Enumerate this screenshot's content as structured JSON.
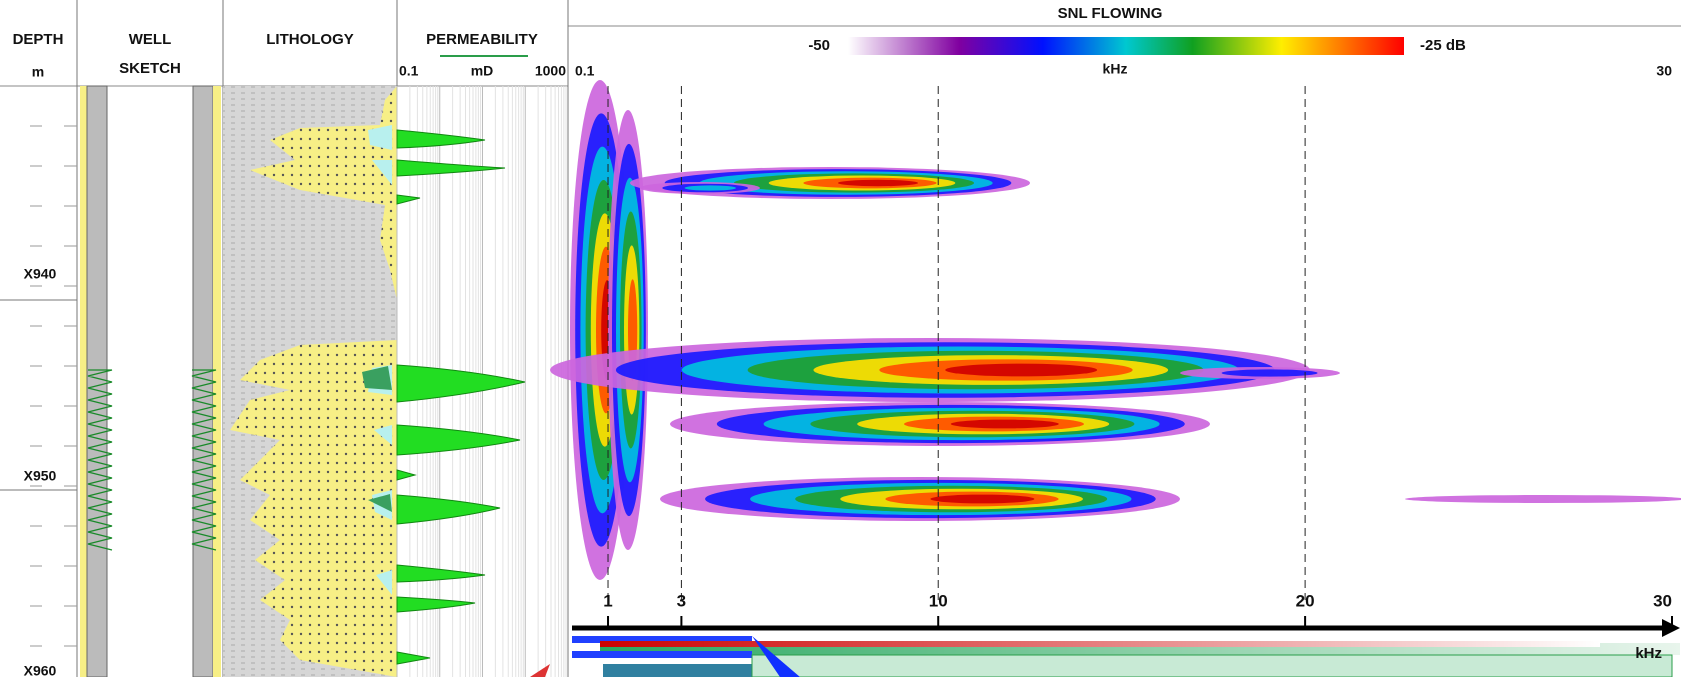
{
  "depth_track": {
    "header": "DEPTH",
    "unit": "m",
    "labels": [
      "X940",
      "X950",
      "X960"
    ]
  },
  "well_sketch": {
    "header_lines": [
      "WELL",
      "SKETCH"
    ]
  },
  "lithology": {
    "header": "LITHOLOGY"
  },
  "permeability": {
    "header": "PERMEABILITY",
    "min": "0.1",
    "unit": "mD",
    "max": "1000"
  },
  "snl": {
    "title": "SNL FLOWING",
    "scale_min": "-50",
    "scale_max": "-25 dB",
    "axis_min": 0.1,
    "axis_unit": "kHz",
    "axis_max": 30,
    "freq_ticks": [
      1,
      3,
      10,
      20,
      30
    ],
    "bottom_unit": "kHz"
  }
}
